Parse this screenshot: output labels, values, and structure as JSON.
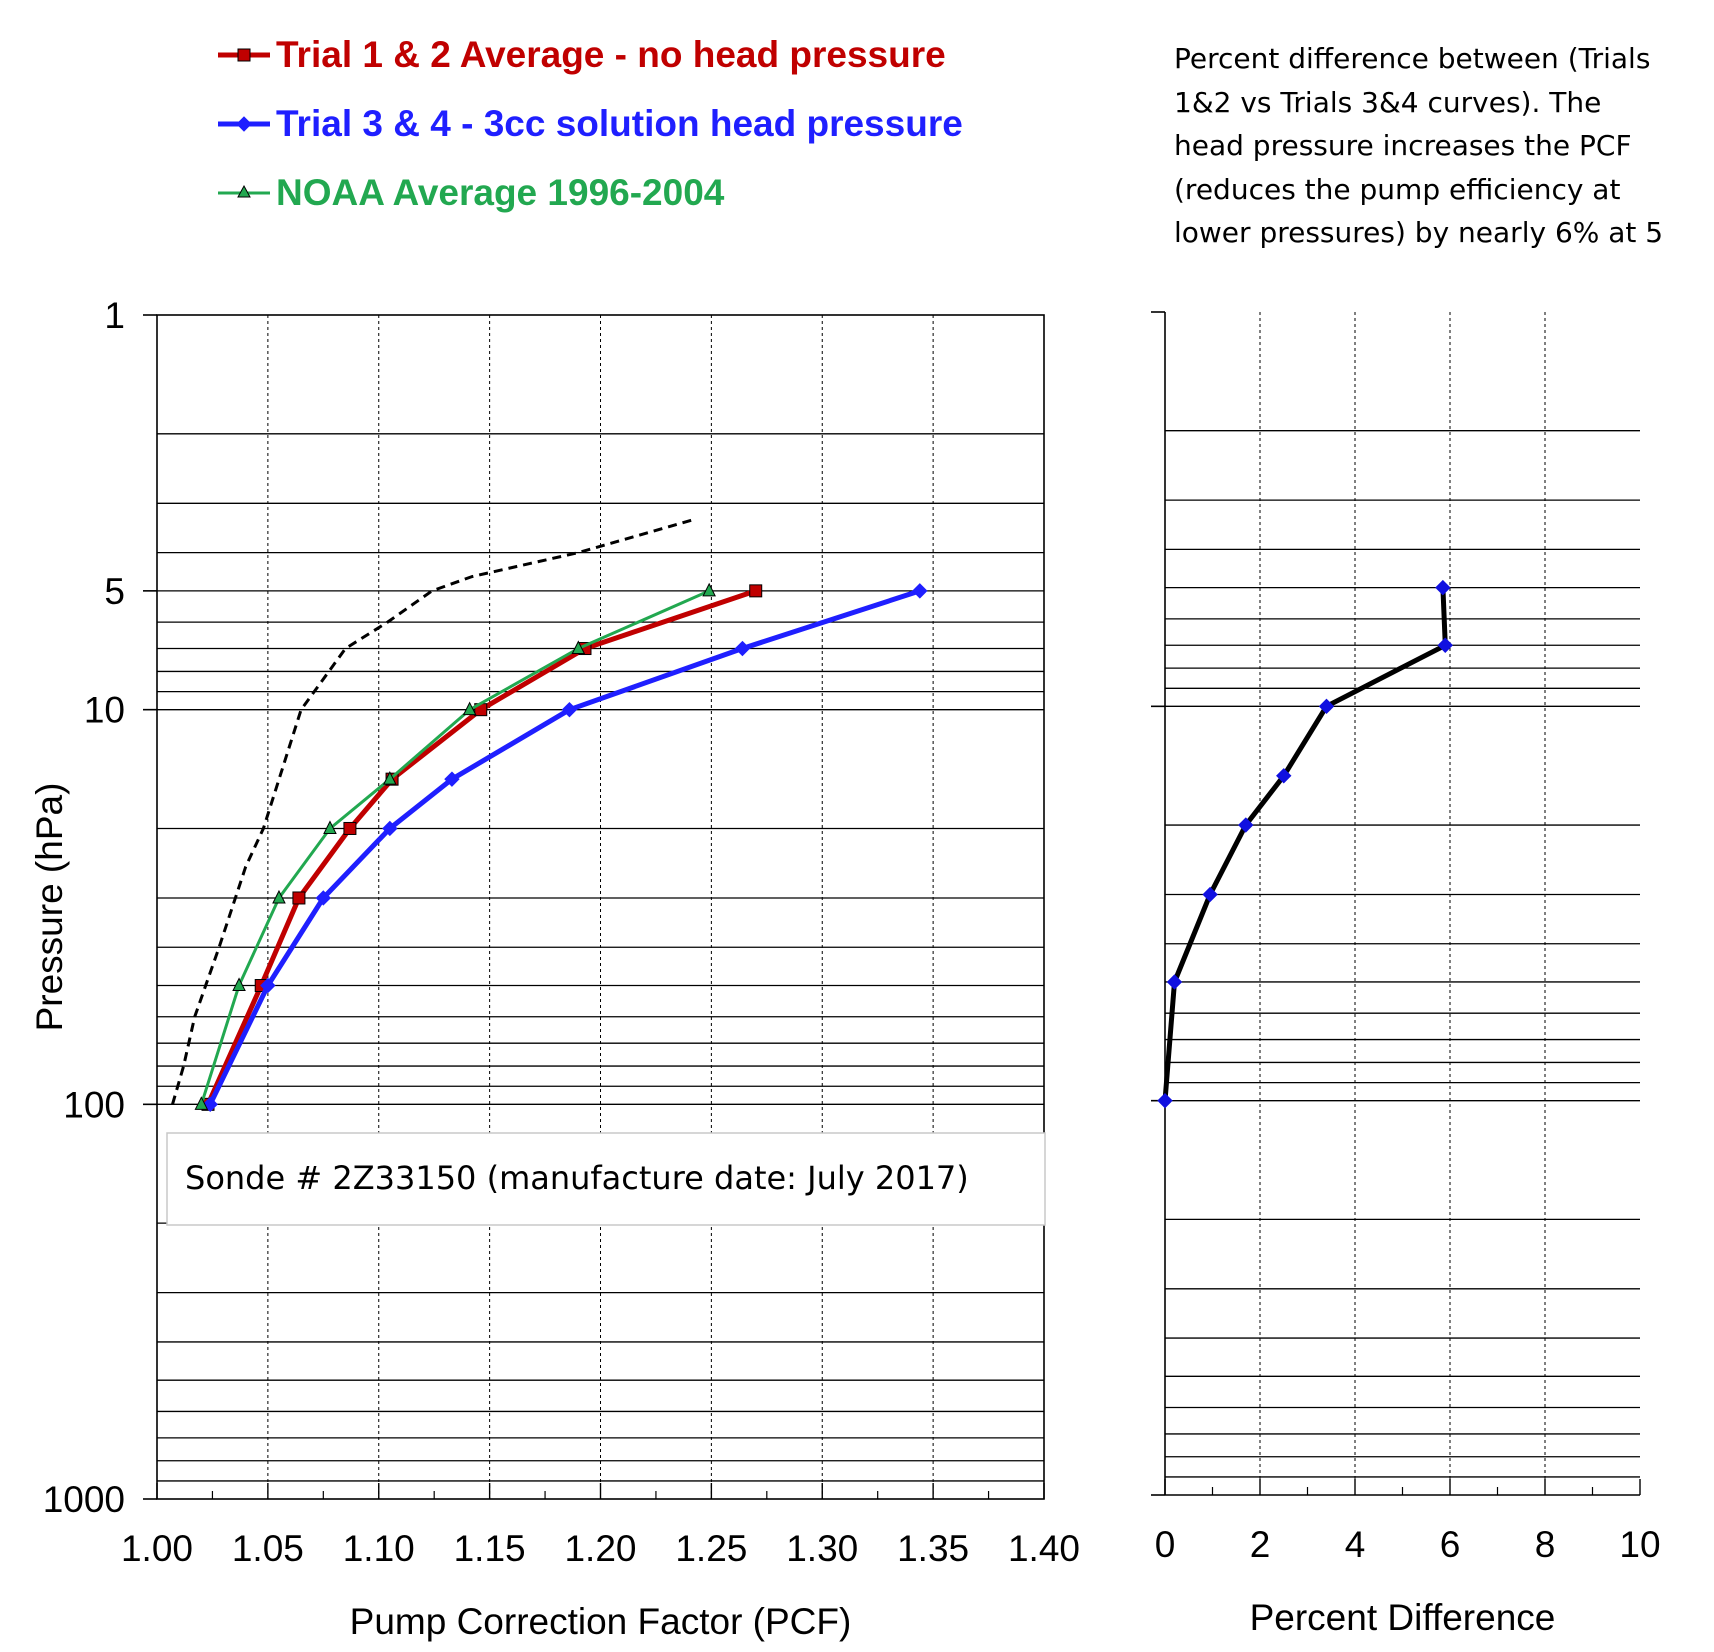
{
  "colors": {
    "trial12": "#c00000",
    "trial34": "#1f1fff",
    "noaa": "#22a850",
    "dashed": "#000000",
    "diff": "#000000",
    "diffMarker": "#1010e0"
  },
  "legend": [
    {
      "label": "Trial 1 & 2 Average - no head pressure",
      "color": "#c00000",
      "marker": "square"
    },
    {
      "label": "Trial 3 & 4 -  3cc  solution head pressure",
      "color": "#1f1fff",
      "marker": "diamond"
    },
    {
      "label": "NOAA Average 1996-2004",
      "color": "#22a850",
      "marker": "triangle"
    }
  ],
  "note": {
    "lines": [
      "Percent difference between (Trials",
      "1&2  vs Trials 3&4  curves). The",
      "head pressure increases the PCF",
      "(reduces the pump efficiency at",
      "lower pressures) by nearly 6% at 5"
    ]
  },
  "sonde_label": "Sonde # 2Z33150  (manufacture  date:  July 2017)",
  "chart_data": [
    {
      "type": "line",
      "xlabel": "Pump  Correction Factor  (PCF)",
      "ylabel": "Pressure (hPa)",
      "xlim": [
        1.0,
        1.4
      ],
      "ylim": [
        1000,
        1
      ],
      "yscale": "log",
      "grid": true,
      "xticks": [
        "1.00",
        "1.05",
        "1.10",
        "1.15",
        "1.20",
        "1.25",
        "1.30",
        "1.35",
        "1.40"
      ],
      "yticks": [
        "1",
        "5",
        "10",
        "100",
        "1000"
      ],
      "series": [
        {
          "name": "Trial 1 & 2 Average - no head pressure",
          "marker": "square",
          "color": "#c00000",
          "x": [
            1.023,
            1.047,
            1.064,
            1.087,
            1.106,
            1.146,
            1.193,
            1.27
          ],
          "y": [
            100,
            50,
            30,
            20,
            15,
            10,
            7,
            5
          ]
        },
        {
          "name": "Trial 3 & 4 -  3cc  solution head pressure",
          "marker": "diamond",
          "color": "#1f1fff",
          "x": [
            1.024,
            1.05,
            1.075,
            1.105,
            1.133,
            1.186,
            1.264,
            1.344
          ],
          "y": [
            100,
            50,
            30,
            20,
            15,
            10,
            7,
            5
          ]
        },
        {
          "name": "NOAA Average 1996-2004",
          "marker": "triangle",
          "color": "#22a850",
          "x": [
            1.02,
            1.037,
            1.055,
            1.078,
            1.105,
            1.141,
            1.19,
            1.249
          ],
          "y": [
            100,
            50,
            30,
            20,
            15,
            10,
            7,
            5
          ]
        },
        {
          "marker": "none",
          "style": "dashed",
          "color": "#000000",
          "x": [
            1.007,
            1.012,
            1.017,
            1.028,
            1.04,
            1.048,
            1.065,
            1.085,
            1.104,
            1.124,
            1.142,
            1.19,
            1.242
          ],
          "y": [
            100,
            80,
            60,
            40,
            25,
            20,
            10,
            7,
            6,
            5,
            4.6,
            4,
            3.3
          ]
        }
      ]
    },
    {
      "type": "line",
      "xlabel": "Percent Difference",
      "xlim": [
        0,
        10
      ],
      "ylim": [
        1000,
        1
      ],
      "yscale": "log",
      "grid": true,
      "xticks": [
        "0",
        "2",
        "4",
        "6",
        "8",
        "10"
      ],
      "series": [
        {
          "marker": "diamond",
          "color": "#000000",
          "x": [
            0.0,
            0.2,
            0.95,
            1.7,
            2.5,
            3.4,
            5.9,
            5.85
          ],
          "y": [
            100,
            50,
            30,
            20,
            15,
            10,
            7,
            5
          ]
        }
      ]
    }
  ]
}
